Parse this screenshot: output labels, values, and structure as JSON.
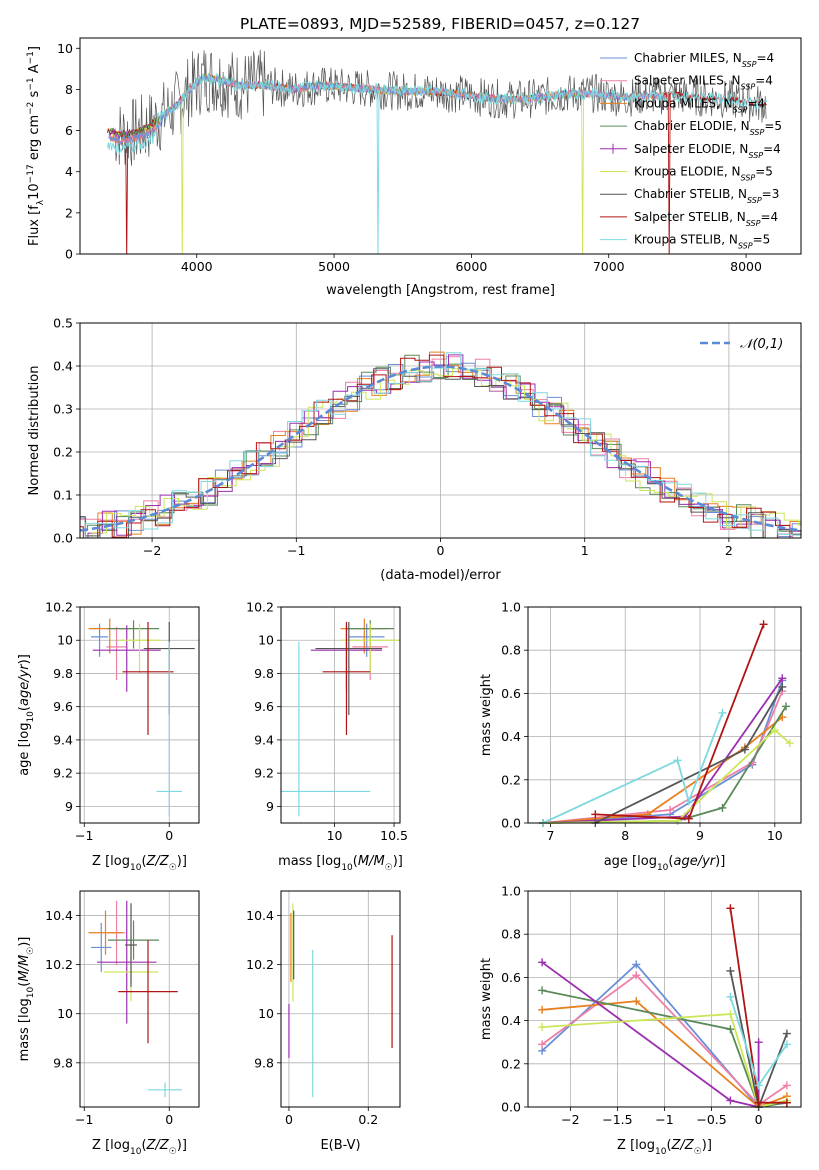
{
  "figure": {
    "title": "PLATE=0893, MJD=52589, FIBERID=0457, z=0.127"
  },
  "colors": {
    "Chabrier MILES": "#6a8fd8",
    "Salpeter MILES": "#ee7fa8",
    "Kroupa MILES": "#e8801e",
    "Chabrier ELODIE": "#5a8a5a",
    "Salpeter ELODIE": "#9b2fb0",
    "Kroupa ELODIE": "#cce65a",
    "Chabrier STELIB": "#555555",
    "Salpeter STELIB": "#b01414",
    "Kroupa STELIB": "#7ed8e0"
  },
  "chart_data": [
    {
      "id": "spectrum",
      "type": "line",
      "title": "PLATE=0893, MJD=52589, FIBERID=0457, z=0.127",
      "xlabel": "wavelength [Angstrom, rest frame]",
      "ylabel": "Flux [f_λ 10^-17 erg cm^-2 s^-1 A^-1]",
      "xlim": [
        3150,
        8400
      ],
      "ylim": [
        0,
        10.5
      ],
      "xticks": [
        4000,
        5000,
        6000,
        7000,
        8000
      ],
      "yticks": [
        0,
        2,
        4,
        6,
        8,
        10
      ],
      "grid": false,
      "legend_position": "top-right",
      "legend": [
        {
          "name": "Chabrier MILES",
          "sub": "SSP",
          "n": "4"
        },
        {
          "name": "Salpeter MILES",
          "sub": "SSP",
          "n": "4"
        },
        {
          "name": "Kroupa MILES",
          "sub": "SSP",
          "n": "4"
        },
        {
          "name": "Chabrier ELODIE",
          "sub": "SSP",
          "n": "5"
        },
        {
          "name": "Salpeter ELODIE",
          "sub": "SSP",
          "n": "4"
        },
        {
          "name": "Kroupa ELODIE",
          "sub": "SSP",
          "n": "5"
        },
        {
          "name": "Chabrier STELIB",
          "sub": "SSP",
          "n": "3"
        },
        {
          "name": "Salpeter STELIB",
          "sub": "SSP",
          "n": "4"
        },
        {
          "name": "Kroupa STELIB",
          "sub": "SSP",
          "n": "5"
        }
      ],
      "envelope": {
        "wavelength": [
          3350,
          3450,
          3550,
          3650,
          3750,
          3850,
          3950,
          4050,
          4150,
          4300,
          4500,
          4700,
          4900,
          5100,
          5300,
          5500,
          5700,
          5900,
          6100,
          6300,
          6500,
          6700,
          6900,
          7100,
          7300,
          7500,
          7700,
          7900,
          8100
        ],
        "flux": [
          6.0,
          5.8,
          5.9,
          6.2,
          6.7,
          7.2,
          8.0,
          8.6,
          8.5,
          8.2,
          8.2,
          8.0,
          8.2,
          8.1,
          8.0,
          7.9,
          7.9,
          7.8,
          7.6,
          7.5,
          7.6,
          7.8,
          7.8,
          7.6,
          7.7,
          7.7,
          7.6,
          7.5,
          7.3
        ]
      },
      "dips": [
        {
          "series": "Salpeter STELIB",
          "wavelength": 3490,
          "depth": 0.0
        },
        {
          "series": "Kroupa ELODIE",
          "wavelength": 3895,
          "depth": 0.0
        },
        {
          "series": "Kroupa STELIB",
          "wavelength": 5320,
          "depth": 0.0
        },
        {
          "series": "Kroupa ELODIE",
          "wavelength": 6810,
          "depth": 0.0
        },
        {
          "series": "Salpeter STELIB",
          "wavelength": 7440,
          "depth": 0.0
        }
      ]
    },
    {
      "id": "residuals",
      "type": "bar",
      "xlabel": "(data-model)/error",
      "ylabel": "Normed distribution",
      "xlim": [
        -2.5,
        2.5
      ],
      "ylim": [
        0,
        0.5
      ],
      "xticks": [
        -2,
        -1,
        0,
        1,
        2
      ],
      "yticks": [
        0.0,
        0.1,
        0.2,
        0.3,
        0.4,
        0.5
      ],
      "grid": true,
      "legend_position": "top-right",
      "reference_curve": {
        "label": "𝒩(0,1)",
        "mean": 0,
        "sigma": 1,
        "color": "#5b8ad6"
      },
      "bin_width": 0.1,
      "series_names": [
        "Chabrier MILES",
        "Salpeter MILES",
        "Kroupa MILES",
        "Chabrier ELODIE",
        "Salpeter ELODIE",
        "Kroupa ELODIE",
        "Chabrier STELIB",
        "Salpeter STELIB",
        "Kroupa STELIB"
      ]
    },
    {
      "id": "age_vs_Z",
      "type": "scatter",
      "xlabel": "Z [log10(Z/Z☉)]",
      "ylabel": "age  [log10(age/yr)]",
      "xlim": [
        -1.05,
        0.35
      ],
      "ylim": [
        8.9,
        10.2
      ],
      "xticks": [
        -1,
        0
      ],
      "yticks": [
        9.0,
        9.2,
        9.4,
        9.6,
        9.8,
        10.0,
        10.2
      ],
      "grid": true,
      "points": [
        {
          "series": "Chabrier MILES",
          "x": -0.82,
          "y": 10.02,
          "xerr": 0.1,
          "yerr": [
            0.12,
            0.08
          ]
        },
        {
          "series": "Salpeter MILES",
          "x": -0.62,
          "y": 9.96,
          "xerr": 0.12,
          "yerr": [
            0.2,
            0.12
          ]
        },
        {
          "series": "Kroupa MILES",
          "x": -0.7,
          "y": 10.07,
          "xerr": 0.25,
          "yerr": [
            0.15,
            0.06
          ]
        },
        {
          "series": "Chabrier ELODIE",
          "x": -0.42,
          "y": 10.07,
          "xerr": 0.3,
          "yerr": [
            0.12,
            0.05
          ]
        },
        {
          "series": "Salpeter ELODIE",
          "x": -0.5,
          "y": 9.94,
          "xerr": 0.4,
          "yerr": [
            0.25,
            0.15
          ]
        },
        {
          "series": "Kroupa ELODIE",
          "x": -0.35,
          "y": 10.0,
          "xerr": 0.25,
          "yerr": [
            0.2,
            0.1
          ]
        },
        {
          "series": "Chabrier STELIB",
          "x": 0.0,
          "y": 9.95,
          "xerr": 0.3,
          "yerr": [
            0.4,
            0.16
          ]
        },
        {
          "series": "Salpeter STELIB",
          "x": -0.25,
          "y": 9.81,
          "xerr": 0.3,
          "yerr": [
            0.38,
            0.3
          ]
        },
        {
          "series": "Kroupa STELIB",
          "x": 0.0,
          "y": 9.09,
          "xerr": 0.15,
          "yerr": [
            0.15,
            0.9
          ]
        }
      ]
    },
    {
      "id": "age_vs_mass",
      "type": "scatter",
      "xlabel": "mass [log10(M/M☉)]",
      "ylabel": "",
      "xlim": [
        9.55,
        10.55
      ],
      "ylim": [
        8.9,
        10.2
      ],
      "xticks": [
        10.0,
        10.5
      ],
      "yticks": [
        9.0,
        9.2,
        9.4,
        9.6,
        9.8,
        10.0,
        10.2
      ],
      "grid": true,
      "points": [
        {
          "series": "Chabrier MILES",
          "x": 10.27,
          "y": 10.02,
          "xerr": 0.15,
          "yerr": [
            0.12,
            0.08
          ]
        },
        {
          "series": "Salpeter MILES",
          "x": 10.3,
          "y": 9.96,
          "xerr": 0.15,
          "yerr": [
            0.2,
            0.12
          ]
        },
        {
          "series": "Kroupa MILES",
          "x": 10.25,
          "y": 10.07,
          "xerr": 0.2,
          "yerr": [
            0.15,
            0.06
          ]
        },
        {
          "series": "Chabrier ELODIE",
          "x": 10.3,
          "y": 10.07,
          "xerr": 0.2,
          "yerr": [
            0.12,
            0.05
          ]
        },
        {
          "series": "Salpeter ELODIE",
          "x": 10.1,
          "y": 9.94,
          "xerr": 0.3,
          "yerr": [
            0.25,
            0.15
          ]
        },
        {
          "series": "Kroupa ELODIE",
          "x": 10.3,
          "y": 10.0,
          "xerr": 0.25,
          "yerr": [
            0.2,
            0.1
          ]
        },
        {
          "series": "Chabrier STELIB",
          "x": 10.12,
          "y": 9.95,
          "xerr": 0.28,
          "yerr": [
            0.4,
            0.16
          ]
        },
        {
          "series": "Salpeter STELIB",
          "x": 10.1,
          "y": 9.81,
          "xerr": 0.2,
          "yerr": [
            0.38,
            0.3
          ]
        },
        {
          "series": "Kroupa STELIB",
          "x": 9.7,
          "y": 9.09,
          "xerr": 0.6,
          "yerr": [
            0.15,
            0.9
          ]
        }
      ]
    },
    {
      "id": "massweight_vs_age",
      "type": "line",
      "xlabel": "age  [log10(age/yr)]",
      "ylabel": "mass weight",
      "xlim": [
        6.7,
        10.35
      ],
      "ylim": [
        0.0,
        1.0
      ],
      "xticks": [
        7,
        8,
        9,
        10
      ],
      "yticks": [
        0.0,
        0.2,
        0.4,
        0.6,
        0.8,
        1.0
      ],
      "grid": true,
      "series": [
        {
          "name": "Chabrier MILES",
          "x": [
            6.9,
            8.6,
            9.7,
            10.1
          ],
          "y": [
            0.0,
            0.04,
            0.27,
            0.66
          ]
        },
        {
          "name": "Salpeter MILES",
          "x": [
            6.9,
            8.6,
            9.7,
            10.1
          ],
          "y": [
            0.0,
            0.06,
            0.28,
            0.61
          ]
        },
        {
          "name": "Kroupa MILES",
          "x": [
            6.9,
            8.3,
            9.6,
            10.1
          ],
          "y": [
            0.0,
            0.04,
            0.35,
            0.49
          ]
        },
        {
          "name": "Chabrier ELODIE",
          "x": [
            6.9,
            8.7,
            9.3,
            10.15
          ],
          "y": [
            0.0,
            0.01,
            0.07,
            0.54
          ]
        },
        {
          "name": "Salpeter ELODIE",
          "x": [
            6.9,
            8.8,
            10.1
          ],
          "y": [
            0.0,
            0.03,
            0.67
          ]
        },
        {
          "name": "Kroupa ELODIE",
          "x": [
            6.9,
            8.7,
            10.0,
            10.2
          ],
          "y": [
            0.0,
            0.01,
            0.43,
            0.37
          ]
        },
        {
          "name": "Chabrier STELIB",
          "x": [
            7.6,
            9.6,
            10.1
          ],
          "y": [
            0.0,
            0.34,
            0.63
          ]
        },
        {
          "name": "Salpeter STELIB",
          "x": [
            7.6,
            8.85,
            9.85
          ],
          "y": [
            0.04,
            0.02,
            0.92
          ]
        },
        {
          "name": "Kroupa STELIB",
          "x": [
            6.9,
            8.7,
            8.85,
            9.3
          ],
          "y": [
            0.0,
            0.29,
            0.1,
            0.51
          ]
        }
      ]
    },
    {
      "id": "mass_vs_Z",
      "type": "scatter",
      "xlabel": "Z [log10(Z/Z☉)]",
      "ylabel": "mass [log10(M/M☉)]",
      "xlim": [
        -1.05,
        0.35
      ],
      "ylim": [
        9.62,
        10.5
      ],
      "xticks": [
        -1,
        0
      ],
      "yticks": [
        9.8,
        10.0,
        10.2,
        10.4
      ],
      "grid": true,
      "points": [
        {
          "series": "Chabrier MILES",
          "x": -0.8,
          "y": 10.27,
          "xerr": 0.12,
          "yerr": 0.1
        },
        {
          "series": "Salpeter MILES",
          "x": -0.62,
          "y": 10.33,
          "xerr": 0.1,
          "yerr": 0.13
        },
        {
          "series": "Kroupa MILES",
          "x": -0.75,
          "y": 10.33,
          "xerr": 0.2,
          "yerr": 0.09
        },
        {
          "series": "Chabrier ELODIE",
          "x": -0.42,
          "y": 10.3,
          "xerr": 0.3,
          "yerr": 0.08
        },
        {
          "series": "Salpeter ELODIE",
          "x": -0.5,
          "y": 10.21,
          "xerr": 0.35,
          "yerr": 0.25
        },
        {
          "series": "Kroupa ELODIE",
          "x": -0.45,
          "y": 10.17,
          "xerr": 0.32,
          "yerr": 0.12
        },
        {
          "series": "Chabrier STELIB",
          "x": -0.45,
          "y": 10.28,
          "xerr": 0.07,
          "yerr": 0.17
        },
        {
          "series": "Salpeter STELIB",
          "x": -0.25,
          "y": 10.09,
          "xerr": 0.35,
          "yerr": 0.21
        },
        {
          "series": "Kroupa STELIB",
          "x": -0.05,
          "y": 9.69,
          "xerr": 0.2,
          "yerr": 0.03
        }
      ]
    },
    {
      "id": "mass_vs_ebv",
      "type": "scatter",
      "xlabel": "E(B-V)",
      "ylabel": "",
      "xlim": [
        -0.02,
        0.28
      ],
      "ylim": [
        9.62,
        10.5
      ],
      "xticks": [
        0.0,
        0.2
      ],
      "yticks": [
        9.8,
        10.0,
        10.2,
        10.4
      ],
      "grid": true,
      "points": [
        {
          "series": "Kroupa MILES",
          "x": 0.005,
          "y": 10.27,
          "yerr": 0.14
        },
        {
          "series": "Kroupa ELODIE",
          "x": 0.01,
          "y": 10.25,
          "yerr": 0.2
        },
        {
          "series": "Salpeter ELODIE",
          "x": 0.0,
          "y": 9.93,
          "yerr": 0.11
        },
        {
          "series": "Kroupa STELIB",
          "x": 0.06,
          "y": 9.96,
          "yerr": 0.3
        },
        {
          "series": "Salpeter STELIB",
          "x": 0.26,
          "y": 10.09,
          "yerr": 0.23
        },
        {
          "series": "Chabrier STELIB",
          "x": 0.012,
          "y": 10.28,
          "yerr": 0.14
        }
      ]
    },
    {
      "id": "massweight_vs_Z",
      "type": "line",
      "xlabel": "Z [log10(Z/Z☉)]",
      "ylabel": "mass weight",
      "xlim": [
        -2.45,
        0.45
      ],
      "ylim": [
        0.0,
        1.0
      ],
      "xticks": [
        -2.0,
        -1.5,
        -1.0,
        -0.5,
        0.0
      ],
      "yticks": [
        0.0,
        0.2,
        0.4,
        0.6,
        0.8,
        1.0
      ],
      "grid": true,
      "series": [
        {
          "name": "Chabrier MILES",
          "x": [
            -2.3,
            -1.3,
            0.0
          ],
          "y": [
            0.26,
            0.66,
            0.0
          ]
        },
        {
          "name": "Salpeter MILES",
          "x": [
            -2.3,
            -1.3,
            0.0,
            0.3
          ],
          "y": [
            0.29,
            0.61,
            0.01,
            0.1
          ]
        },
        {
          "name": "Kroupa MILES",
          "x": [
            -2.3,
            -1.3,
            0.0,
            0.3
          ],
          "y": [
            0.45,
            0.49,
            0.0,
            0.05
          ]
        },
        {
          "name": "Chabrier ELODIE",
          "x": [
            -2.3,
            -0.3,
            0.0,
            0.3
          ],
          "y": [
            0.54,
            0.36,
            0.0,
            0.02
          ]
        },
        {
          "name": "Salpeter ELODIE",
          "x": [
            -2.3,
            -0.3,
            0.0,
            0.0
          ],
          "y": [
            0.67,
            0.03,
            0.0,
            0.3
          ]
        },
        {
          "name": "Kroupa ELODIE",
          "x": [
            -2.3,
            -0.3,
            0.0,
            0.3
          ],
          "y": [
            0.37,
            0.43,
            0.0,
            0.03
          ]
        },
        {
          "name": "Chabrier STELIB",
          "x": [
            -0.3,
            0.0,
            0.3
          ],
          "y": [
            0.63,
            0.0,
            0.34
          ]
        },
        {
          "name": "Salpeter STELIB",
          "x": [
            -0.3,
            0.0,
            0.3
          ],
          "y": [
            0.92,
            0.02,
            0.02
          ]
        },
        {
          "name": "Kroupa STELIB",
          "x": [
            -0.3,
            0.0,
            0.3
          ],
          "y": [
            0.51,
            0.1,
            0.29
          ]
        }
      ]
    }
  ]
}
